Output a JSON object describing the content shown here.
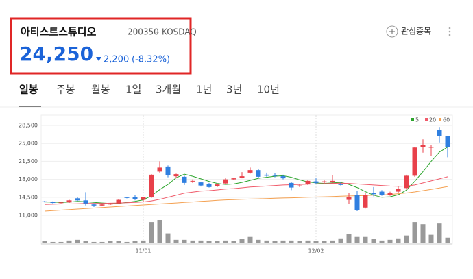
{
  "header": {
    "name": "아티스트스튜디오",
    "code": "200350",
    "market": "KOSDAQ",
    "price": "24,250",
    "change": "2,200",
    "change_rate": "(-8.32%)",
    "watch_button": "관심종목"
  },
  "tabs": [
    "일봉",
    "주봉",
    "월봉",
    "1일",
    "3개월",
    "1년",
    "3년",
    "10년"
  ],
  "chart_data": {
    "type": "candlestick",
    "categories": [
      null,
      null,
      null,
      null,
      null,
      null,
      null,
      null,
      null,
      null,
      null,
      null,
      "11/01",
      null,
      null,
      null,
      null,
      null,
      null,
      null,
      null,
      null,
      null,
      null,
      null,
      null,
      null,
      null,
      null,
      null,
      null,
      null,
      null,
      "12/02",
      null,
      null,
      null,
      null,
      null,
      null,
      null,
      null,
      null,
      null,
      null,
      null,
      null,
      null,
      null,
      null
    ],
    "open": [
      13700,
      13600,
      13400,
      13500,
      14300,
      13900,
      13100,
      12900,
      13100,
      13300,
      14500,
      14500,
      14000,
      14500,
      19500,
      20500,
      18600,
      18500,
      17600,
      17400,
      17100,
      16700,
      17200,
      18000,
      18300,
      19300,
      19800,
      18900,
      18800,
      18600,
      17300,
      16700,
      17100,
      17600,
      17400,
      17400,
      17100,
      14000,
      15000,
      12500,
      15300,
      15600,
      15000,
      15600,
      16300,
      18700,
      24300,
      24300,
      27600,
      26450
    ],
    "high": [
      13800,
      13700,
      13600,
      14000,
      14500,
      15500,
      13300,
      13200,
      13400,
      14100,
      14600,
      14900,
      14600,
      19000,
      21500,
      20700,
      19100,
      18700,
      18000,
      17500,
      17300,
      17200,
      18200,
      18300,
      19400,
      20300,
      20000,
      19300,
      19200,
      18900,
      17500,
      17000,
      17900,
      18200,
      17800,
      18800,
      17400,
      15400,
      15800,
      15300,
      16500,
      15900,
      15600,
      16600,
      18900,
      24300,
      25800,
      24700,
      28200,
      26500
    ],
    "low": [
      13500,
      13300,
      13300,
      13400,
      13800,
      12900,
      12600,
      12800,
      13000,
      13200,
      14300,
      13900,
      13600,
      14400,
      19300,
      18400,
      18200,
      16900,
      17300,
      16600,
      16400,
      16500,
      17000,
      17900,
      18200,
      19100,
      18300,
      18500,
      18400,
      18000,
      15900,
      16500,
      16900,
      17100,
      17200,
      17300,
      16800,
      13200,
      11800,
      12300,
      14700,
      14800,
      14800,
      15300,
      16000,
      18500,
      23200,
      22600,
      25200,
      22300
    ],
    "close": [
      13600,
      13400,
      13500,
      13900,
      13900,
      13300,
      12900,
      13100,
      13300,
      14000,
      14400,
      14200,
      14500,
      18900,
      20300,
      18800,
      19000,
      17300,
      17700,
      16800,
      16500,
      17000,
      18000,
      18200,
      18600,
      19800,
      18500,
      18700,
      18700,
      18200,
      16400,
      16800,
      17700,
      17300,
      17600,
      17700,
      16900,
      14500,
      12000,
      15000,
      15100,
      15000,
      15300,
      16200,
      18700,
      24200,
      24700,
      24300,
      26450,
      24250
    ],
    "volume": [
      3,
      2,
      2,
      4,
      5,
      3,
      2,
      2,
      3,
      3,
      2,
      3,
      4,
      30,
      33,
      14,
      5,
      5,
      4,
      4,
      3,
      3,
      4,
      3,
      6,
      9,
      5,
      4,
      3,
      4,
      4,
      3,
      4,
      3,
      3,
      4,
      7,
      13,
      9,
      9,
      6,
      4,
      5,
      7,
      11,
      30,
      27,
      12,
      28,
      8
    ],
    "up_color": "#e8404a",
    "down_color": "#2f7fe0",
    "series": [
      {
        "name": "5",
        "color": "#2ca52c",
        "values": [
          13600,
          13550,
          13500,
          13550,
          13700,
          13650,
          13500,
          13400,
          13300,
          13300,
          13500,
          13700,
          14000,
          14800,
          16000,
          17000,
          18300,
          19000,
          18600,
          18100,
          17600,
          17200,
          17000,
          17100,
          17400,
          17800,
          18200,
          18400,
          18600,
          18700,
          18400,
          17900,
          17500,
          17300,
          17200,
          17300,
          17400,
          17000,
          16400,
          15600,
          14900,
          14500,
          14600,
          15000,
          15900,
          17600,
          19500,
          21500,
          23300,
          24300
        ]
      },
      {
        "name": "20",
        "color": "#f05a6a",
        "values": [
          13100,
          13150,
          13200,
          13200,
          13250,
          13300,
          13300,
          13300,
          13350,
          13400,
          13450,
          13500,
          13600,
          13800,
          14100,
          14500,
          14900,
          15300,
          15500,
          15700,
          15800,
          15950,
          16100,
          16200,
          16350,
          16500,
          16600,
          16700,
          16800,
          16900,
          16950,
          17000,
          17050,
          17100,
          17150,
          17200,
          17250,
          17200,
          17100,
          17000,
          16900,
          16800,
          16700,
          16650,
          16700,
          16900,
          17300,
          17700,
          18100,
          18500
        ]
      },
      {
        "name": "60",
        "color": "#f4a050",
        "values": [
          11800,
          11900,
          12000,
          12100,
          12200,
          12300,
          12400,
          12500,
          12600,
          12700,
          12800,
          12900,
          13000,
          13100,
          13200,
          13300,
          13400,
          13500,
          13600,
          13700,
          13800,
          13900,
          14000,
          14050,
          14100,
          14150,
          14200,
          14250,
          14300,
          14350,
          14400,
          14450,
          14500,
          14550,
          14600,
          14650,
          14700,
          14750,
          14800,
          14850,
          14900,
          14950,
          15050,
          15200,
          15350,
          15550,
          15800,
          16050,
          16300,
          16600
        ]
      }
    ],
    "ylim": [
      10000,
      30000
    ],
    "yticks": [
      {
        "value": 11000,
        "label": "11,000"
      },
      {
        "value": 14500,
        "label": "14,500"
      },
      {
        "value": 18000,
        "label": "18,000"
      },
      {
        "value": 21500,
        "label": "21,500"
      },
      {
        "value": 25000,
        "label": "25,000"
      },
      {
        "value": 28500,
        "label": "28,500"
      }
    ],
    "grid": true
  }
}
